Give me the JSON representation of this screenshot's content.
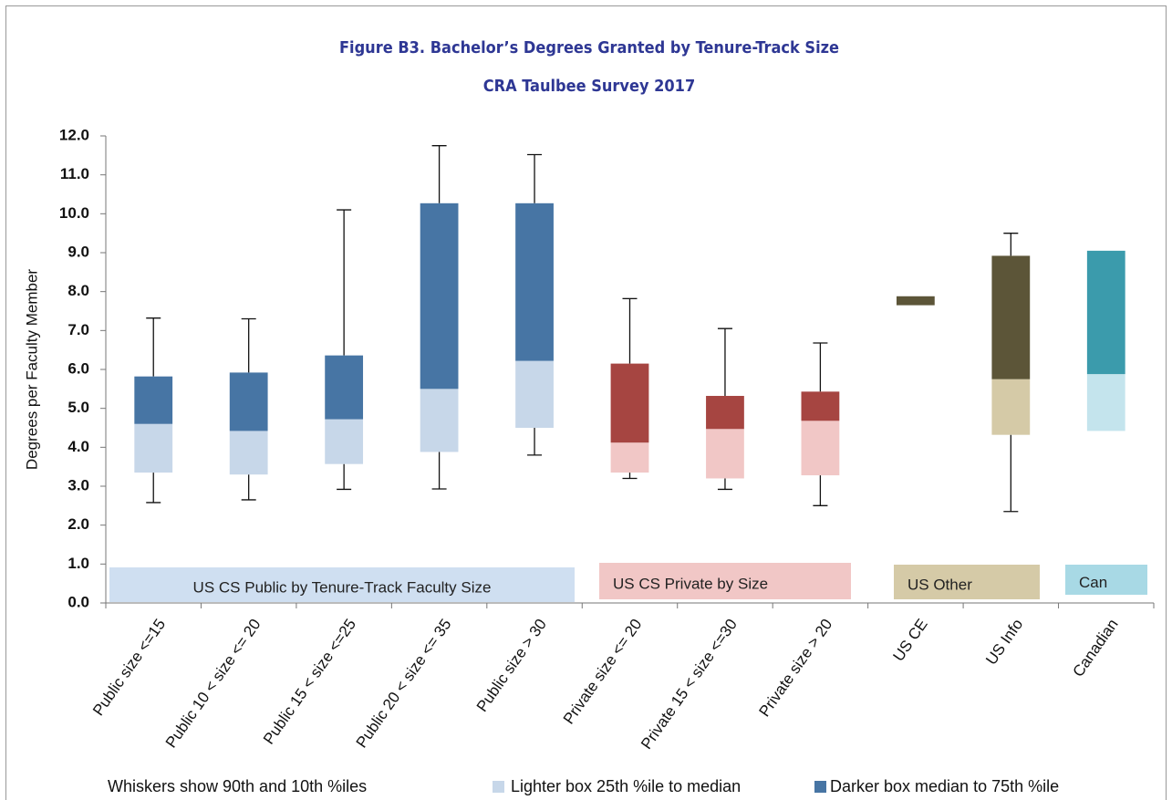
{
  "chart_data": {
    "type": "box",
    "title": "Figure B3. Bachelor’s Degrees Granted by Tenure-Track Size",
    "subtitle": "CRA Taulbee Survey 2017",
    "y_label": "Degrees per Faculty Member",
    "categories": [
      "Public size <=15",
      "Public 10 < size <= 20",
      "Public 15 < size <=25",
      "Public 20 < size <= 35",
      "Public size > 30",
      "Private size <= 20",
      "Private 15 < size <=30",
      "Private size > 20",
      "US CE",
      "US Info",
      "Canadian"
    ],
    "boxes": [
      {
        "p10": 2.58,
        "q1": 3.35,
        "median": 4.6,
        "q3": 5.82,
        "p90": 7.32,
        "light": "#c7d7e9",
        "dark": "#4775a4"
      },
      {
        "p10": 2.65,
        "q1": 3.3,
        "median": 4.42,
        "q3": 5.92,
        "p90": 7.3,
        "light": "#c7d7e9",
        "dark": "#4775a4"
      },
      {
        "p10": 2.92,
        "q1": 3.57,
        "median": 4.72,
        "q3": 6.36,
        "p90": 10.1,
        "light": "#c7d7e9",
        "dark": "#4775a4"
      },
      {
        "p10": 2.93,
        "q1": 3.88,
        "median": 5.5,
        "q3": 10.27,
        "p90": 11.75,
        "light": "#c7d7e9",
        "dark": "#4775a4"
      },
      {
        "p10": 3.8,
        "q1": 4.5,
        "median": 6.22,
        "q3": 10.27,
        "p90": 11.52,
        "light": "#c7d7e9",
        "dark": "#4775a4"
      },
      {
        "p10": 3.2,
        "q1": 3.35,
        "median": 4.12,
        "q3": 6.15,
        "p90": 7.82,
        "light": "#f1c7c6",
        "dark": "#a64541"
      },
      {
        "p10": 2.92,
        "q1": 3.2,
        "median": 4.47,
        "q3": 5.32,
        "p90": 7.05,
        "light": "#f1c7c6",
        "dark": "#a64541"
      },
      {
        "p10": 2.5,
        "q1": 3.28,
        "median": 4.68,
        "q3": 5.43,
        "p90": 6.68,
        "light": "#f1c7c6",
        "dark": "#a64541"
      },
      {
        "p10": null,
        "q1": null,
        "median": 7.65,
        "q3": 7.88,
        "p90": null,
        "light": "#d5caa7",
        "dark": "#5c5538"
      },
      {
        "p10": 2.35,
        "q1": 4.32,
        "median": 5.75,
        "q3": 8.92,
        "p90": 9.5,
        "light": "#d5caa7",
        "dark": "#5c5538"
      },
      {
        "p10": null,
        "q1": 4.42,
        "median": 5.88,
        "q3": 9.05,
        "p90": null,
        "light": "#c4e4ed",
        "dark": "#3b9bac"
      }
    ],
    "groups": [
      {
        "label": "US CS Public by Tenure-Track Faculty Size",
        "color": "#cfdff1"
      },
      {
        "label": "US CS Private by Size",
        "color": "#f1c7c6"
      },
      {
        "label": "US Other",
        "color": "#d5caa7"
      },
      {
        "label": "Can",
        "color": "#a8d9e5"
      }
    ],
    "ylim": [
      0,
      12
    ],
    "yticks": [
      {
        "value": 0,
        "label": "0.0"
      },
      {
        "value": 1,
        "label": "1.0"
      },
      {
        "value": 2,
        "label": "2.0"
      },
      {
        "value": 3,
        "label": "3.0"
      },
      {
        "value": 4,
        "label": "4.0"
      },
      {
        "value": 5,
        "label": "5.0"
      },
      {
        "value": 6,
        "label": "6.0"
      },
      {
        "value": 7,
        "label": "7.0"
      },
      {
        "value": 8,
        "label": "8.0"
      },
      {
        "value": 9,
        "label": "9.0"
      },
      {
        "value": 10,
        "label": "10.0"
      },
      {
        "value": 11,
        "label": "11.0"
      },
      {
        "value": 12,
        "label": "12.0"
      }
    ],
    "legend": {
      "whiskers": "Whiskers show 90th and 10th %iles",
      "light": {
        "label": "Lighter box  25th %ile to median",
        "color": "#c7d7e9"
      },
      "dark": {
        "label": "Darker box  median to 75th %ile",
        "color": "#4775a4"
      }
    }
  }
}
